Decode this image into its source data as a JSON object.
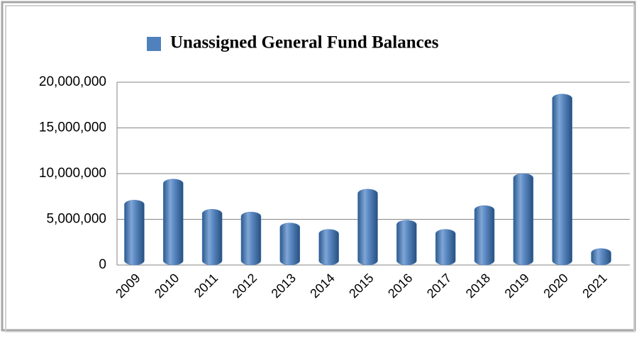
{
  "chart_data": {
    "type": "bar",
    "categories": [
      "2009",
      "2010",
      "2011",
      "2012",
      "2013",
      "2014",
      "2015",
      "2016",
      "2017",
      "2018",
      "2019",
      "2020",
      "2021"
    ],
    "series": [
      {
        "name": "Unassigned General Fund Balances",
        "color": "#4f81bd",
        "values": [
          7100000,
          9400000,
          6100000,
          5800000,
          4600000,
          3900000,
          8300000,
          4900000,
          3900000,
          6500000,
          10000000,
          18700000,
          1800000
        ]
      }
    ],
    "ylim": [
      0,
      20000000
    ],
    "yticks": [
      0,
      {
        "value": 5000000,
        "label": "5,000,000"
      },
      {
        "value": 10000000,
        "label": "10,000,000"
      },
      {
        "value": 15000000,
        "label": "15,000,000"
      },
      {
        "value": 20000000,
        "label": "20,000,000"
      }
    ],
    "grid": true,
    "legend": "top"
  }
}
